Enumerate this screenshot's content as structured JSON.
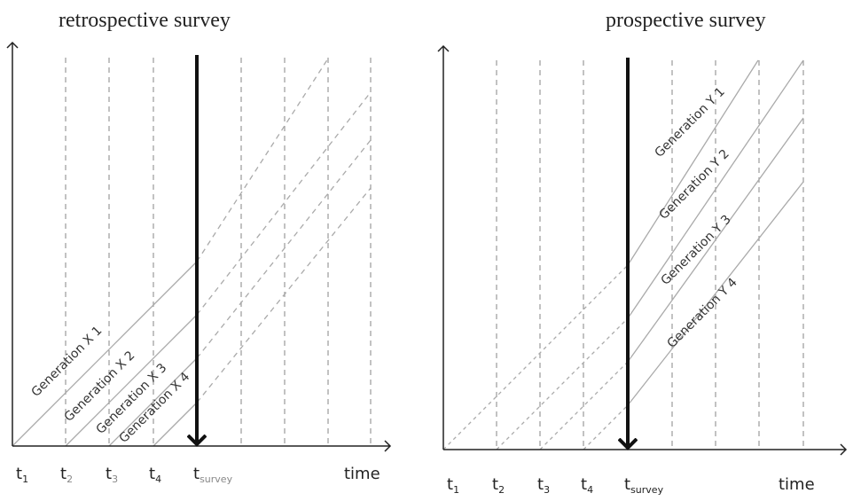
{
  "left_panel": {
    "title": "retrospective survey",
    "time_label": "time",
    "ticks": [
      {
        "base": "t",
        "sub": "1"
      },
      {
        "base": "t",
        "sub": "2"
      },
      {
        "base": "t",
        "sub": "3"
      },
      {
        "base": "t",
        "sub": "4"
      },
      {
        "base": "t",
        "sub": "survey"
      }
    ],
    "generations": [
      "Generation X 1",
      "Generation X 2",
      "Generation X 3",
      "Generation X 4"
    ]
  },
  "right_panel": {
    "title": "prospective survey",
    "time_label": "time",
    "ticks": [
      {
        "base": "t",
        "sub": "1"
      },
      {
        "base": "t",
        "sub": "2"
      },
      {
        "base": "t",
        "sub": "3"
      },
      {
        "base": "t",
        "sub": "4"
      },
      {
        "base": "t",
        "sub": "survey"
      }
    ],
    "generations": [
      "Generation Y 1",
      "Generation Y 2",
      "Generation Y 3",
      "Generation Y 4"
    ]
  }
}
